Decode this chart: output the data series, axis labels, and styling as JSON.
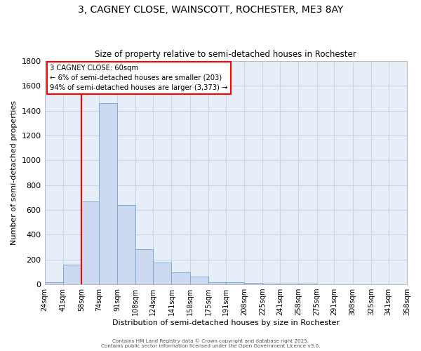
{
  "title1": "3, CAGNEY CLOSE, WAINSCOTT, ROCHESTER, ME3 8AY",
  "title2": "Size of property relative to semi-detached houses in Rochester",
  "xlabel": "Distribution of semi-detached houses by size in Rochester",
  "ylabel": "Number of semi-detached properties",
  "bar_color": "#ccd9f0",
  "bar_edge_color": "#7aaad4",
  "background_color": "#e8eef8",
  "grid_color": "#c8d4e8",
  "bins": [
    24,
    41,
    58,
    74,
    91,
    108,
    124,
    141,
    158,
    175,
    191,
    208,
    225,
    241,
    258,
    275,
    291,
    308,
    325,
    341,
    358
  ],
  "values": [
    20,
    160,
    670,
    1460,
    640,
    285,
    175,
    95,
    60,
    20,
    15,
    12,
    8,
    5,
    5,
    3,
    3,
    2,
    2,
    3
  ],
  "tick_labels": [
    "24sqm",
    "41sqm",
    "58sqm",
    "74sqm",
    "91sqm",
    "108sqm",
    "124sqm",
    "141sqm",
    "158sqm",
    "175sqm",
    "191sqm",
    "208sqm",
    "225sqm",
    "241sqm",
    "258sqm",
    "275sqm",
    "291sqm",
    "308sqm",
    "325sqm",
    "341sqm",
    "358sqm"
  ],
  "ylim": [
    0,
    1800
  ],
  "yticks": [
    0,
    200,
    400,
    600,
    800,
    1000,
    1200,
    1400,
    1600,
    1800
  ],
  "red_line_x": 58,
  "ann_line1": "3 CAGNEY CLOSE: 60sqm",
  "ann_line2": "← 6% of semi-detached houses are smaller (203)",
  "ann_line3": "94% of semi-detached houses are larger (3,373) →",
  "footer1": "Contains HM Land Registry data © Crown copyright and database right 2025.",
  "footer2": "Contains public sector information licensed under the Open Government Licence v3.0."
}
